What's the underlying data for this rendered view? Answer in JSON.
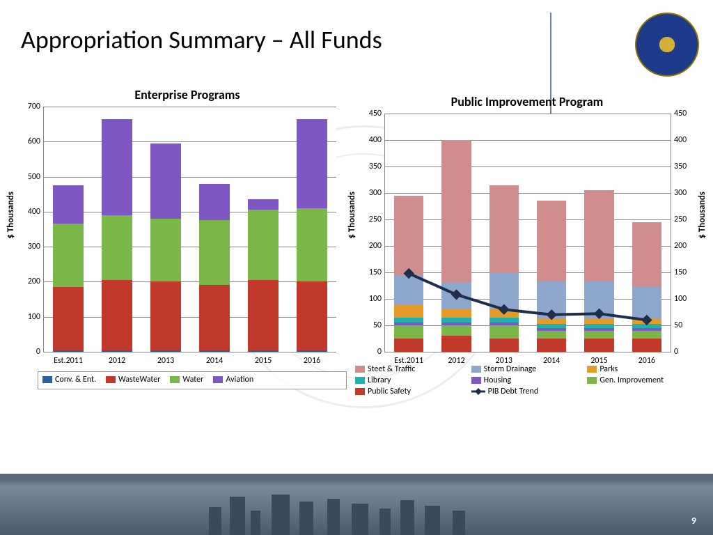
{
  "page_title": "Appropriation Summary – All Funds",
  "page_number": "9",
  "chart1": {
    "title": "Enterprise Programs",
    "ylabel": "$  Thousands",
    "categories": [
      "Est.2011",
      "2012",
      "2013",
      "2014",
      "2015",
      "2016"
    ],
    "ylim_max": 700,
    "ytick_step": 100,
    "series": [
      {
        "name": "Conv. & Ent.",
        "color": "#2860a0",
        "values": [
          5,
          5,
          5,
          5,
          5,
          5
        ]
      },
      {
        "name": "WasteWater",
        "color": "#c0392b",
        "values": [
          180,
          200,
          195,
          185,
          200,
          195
        ]
      },
      {
        "name": "Water",
        "color": "#7ab648",
        "values": [
          180,
          185,
          180,
          185,
          200,
          210
        ]
      },
      {
        "name": "Aviation",
        "color": "#7e57c2",
        "values": [
          110,
          275,
          215,
          105,
          30,
          255
        ]
      }
    ],
    "bar_width": 0.62
  },
  "chart2": {
    "title": "Public Improvement Program",
    "ylabel": "$  Thousands",
    "ylabel_right": "$  Thousands",
    "categories": [
      "Est.2011",
      "2012",
      "2013",
      "2014",
      "2015",
      "2016"
    ],
    "ylim_max": 450,
    "ytick_step": 50,
    "series": [
      {
        "name": "Public Safety",
        "color": "#c0392b",
        "values": [
          25,
          30,
          25,
          25,
          25,
          25
        ]
      },
      {
        "name": "Gen. Improvement",
        "color": "#7ab648",
        "values": [
          25,
          20,
          25,
          15,
          15,
          15
        ]
      },
      {
        "name": "Housing",
        "color": "#7e57c2",
        "values": [
          5,
          5,
          5,
          5,
          5,
          5
        ]
      },
      {
        "name": "Library",
        "color": "#20b2aa",
        "values": [
          10,
          10,
          10,
          8,
          8,
          8
        ]
      },
      {
        "name": "Parks",
        "color": "#e69b28",
        "values": [
          25,
          15,
          15,
          10,
          10,
          10
        ]
      },
      {
        "name": "Storm Drainage",
        "color": "#8da8cc",
        "values": [
          55,
          50,
          70,
          70,
          70,
          60
        ]
      },
      {
        "name": "Steet & Traffic",
        "color": "#d08d8d",
        "values": [
          150,
          270,
          165,
          152,
          172,
          122
        ]
      }
    ],
    "line": {
      "name": "PIB Debt Trend",
      "color": "#1f2e4a",
      "values": [
        148,
        108,
        80,
        70,
        72,
        60
      ],
      "marker": "diamond",
      "width": 4
    },
    "bar_width": 0.62
  },
  "legend1": {
    "items": [
      "Conv. & Ent.",
      "WasteWater",
      "Water",
      "Aviation"
    ]
  },
  "legend2": {
    "items": [
      "Steet & Traffic",
      "Storm Drainage",
      "Parks",
      "Library",
      "Housing",
      "Gen. Improvement",
      "Public Safety",
      "PIB Debt Trend"
    ]
  }
}
